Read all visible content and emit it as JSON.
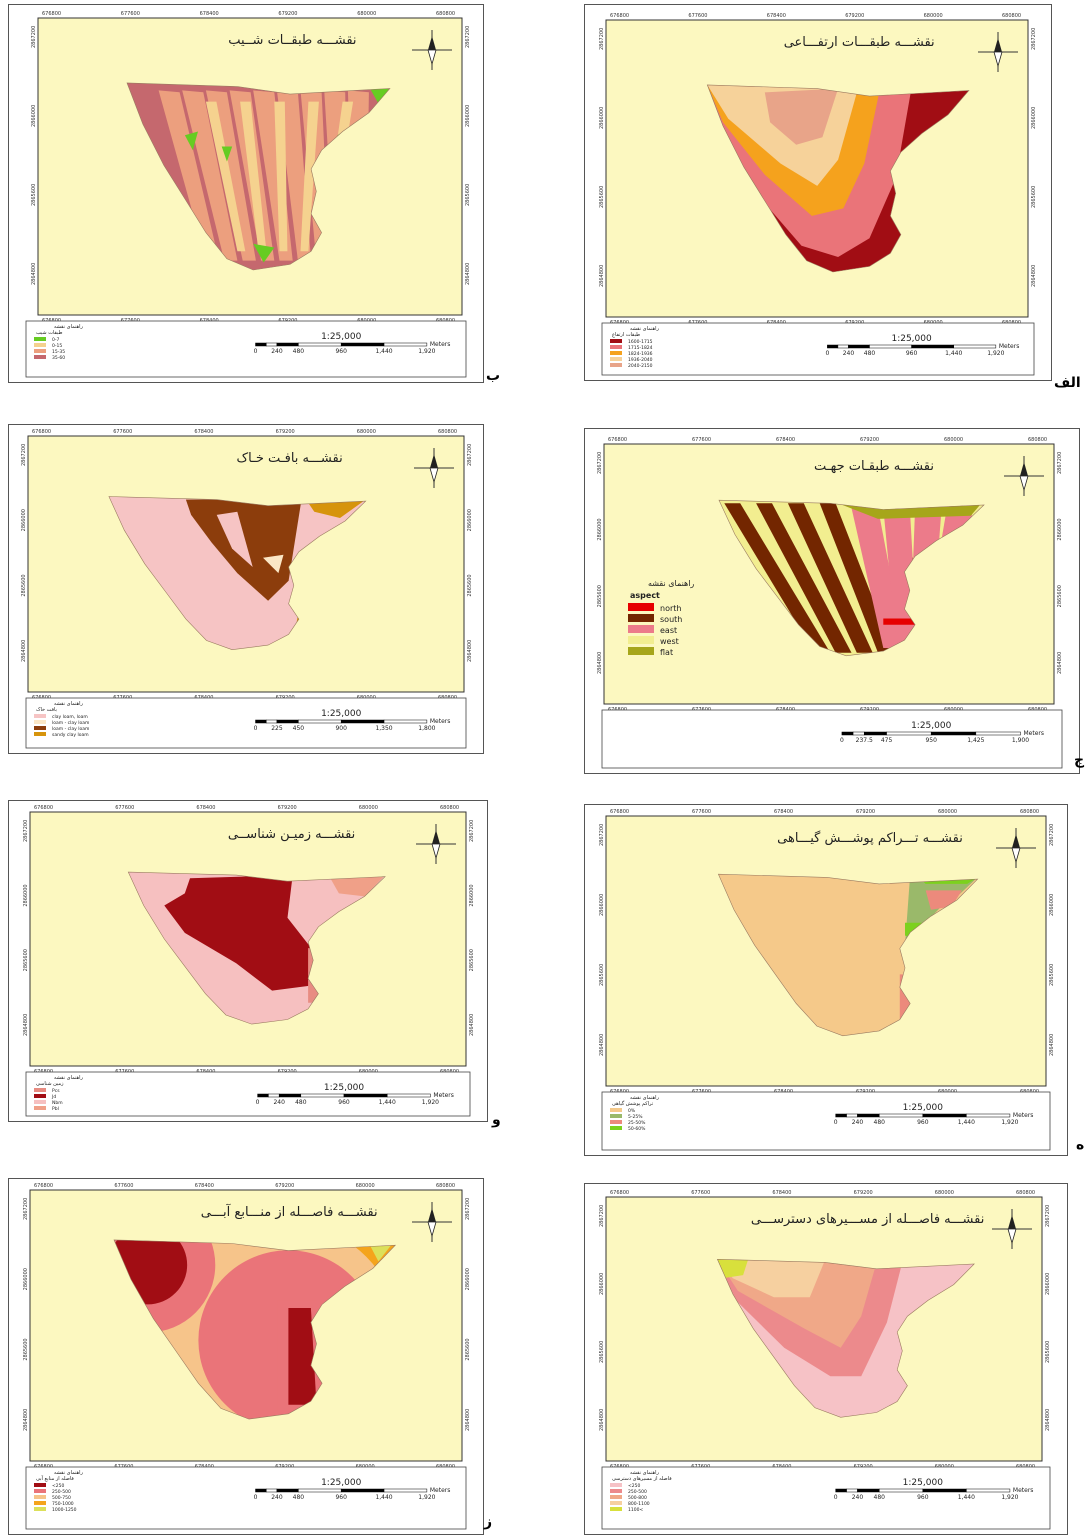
{
  "common": {
    "scale_text": "1:25,000",
    "legend_title": "راهنمای نقشه",
    "scale_unit": "Meters",
    "x_ticks": [
      "676800",
      "677600",
      "678400",
      "679200",
      "680000",
      "680800"
    ],
    "y_ticks": [
      "2867200",
      "2866000",
      "2865600",
      "2864800"
    ]
  },
  "panels": [
    {
      "id": "slope",
      "label": "ب",
      "title": "نقشـــه طبقــات شــیب",
      "scale_ticks": [
        "0",
        "240",
        "480",
        "960",
        "1,440",
        "1,920"
      ],
      "legend_subtitle": "طبقات شیب",
      "legend": [
        {
          "label": "0-7",
          "color": "#66cc22"
        },
        {
          "label": "0-15",
          "color": "#f5d28f"
        },
        {
          "label": "15-35",
          "color": "#ec9f7e"
        },
        {
          "label": "35-60",
          "color": "#c5686e"
        }
      ]
    },
    {
      "id": "elevation",
      "label": "الف",
      "title": "نقشـــه طبقـــات ارتفـــاعی",
      "scale_ticks": [
        "0",
        "240",
        "480",
        "960",
        "1,440",
        "1,920"
      ],
      "legend_subtitle": "طبقات ارتفاع",
      "legend": [
        {
          "label": "1600-1715",
          "color": "#a10d14"
        },
        {
          "label": "1715-1824",
          "color": "#ea7479"
        },
        {
          "label": "1824-1936",
          "color": "#f5a21d"
        },
        {
          "label": "1936-2040",
          "color": "#f6d29a"
        },
        {
          "label": "2040-2150",
          "color": "#e8a489"
        }
      ]
    },
    {
      "id": "soil",
      "label": "",
      "title": "نقشـــه بافـت خـاک",
      "scale_ticks": [
        "0",
        "225",
        "450",
        "900",
        "1,350",
        "1,800"
      ],
      "legend_subtitle": "بافت خاک",
      "legend": [
        {
          "label": "clay loam, loam",
          "color": "#f6c4c4"
        },
        {
          "label": "loam - clay loam",
          "color": "#fbe7c6"
        },
        {
          "label": "loam - clay loam",
          "color": "#8c3d0c"
        },
        {
          "label": "sandy clay loam",
          "color": "#d6940c"
        }
      ]
    },
    {
      "id": "aspect",
      "label": "ج",
      "title": "نقشـــه طبقـات جهـت",
      "scale_ticks": [
        "0",
        "237.5",
        "475",
        "950",
        "1,425",
        "1,900"
      ],
      "legend_subtitle": "aspect",
      "legend": [
        {
          "label": "north",
          "color": "#e60000"
        },
        {
          "label": "south",
          "color": "#732600"
        },
        {
          "label": "east",
          "color": "#ec7b8a"
        },
        {
          "label": "west",
          "color": "#f2ee90"
        },
        {
          "label": "flat",
          "color": "#a6a61a"
        }
      ]
    },
    {
      "id": "geology",
      "label": "و",
      "title": "نقشـــه زمیـن شناســی",
      "scale_ticks": [
        "0",
        "240",
        "480",
        "960",
        "1,440",
        "1,920"
      ],
      "legend_subtitle": "زمین شناسی",
      "legend": [
        {
          "label": "Pcs",
          "color": "#e88c82"
        },
        {
          "label": "Jd",
          "color": "#a10d14"
        },
        {
          "label": "Nbm",
          "color": "#f6c0c0"
        },
        {
          "label": "Pbl",
          "color": "#f0a088"
        }
      ]
    },
    {
      "id": "vegetation",
      "label": "ه",
      "title": "نقشـــه تـــراکم پوشـــش گیـــاهی",
      "scale_ticks": [
        "0",
        "240",
        "480",
        "960",
        "1,440",
        "1,920"
      ],
      "legend_subtitle": "تراکم پوشش گیاهی",
      "legend": [
        {
          "label": "0%",
          "color": "#f5c98a"
        },
        {
          "label": "5-25%",
          "color": "#9ab96a"
        },
        {
          "label": "25-50%",
          "color": "#ec8a7c"
        },
        {
          "label": "50-60%",
          "color": "#7cd11e"
        }
      ]
    },
    {
      "id": "water",
      "label": "ز",
      "title": "نقشـــه فاصـــله از منـــابع آبـــی",
      "scale_ticks": [
        "0",
        "240",
        "480",
        "960",
        "1,440",
        "1,920"
      ],
      "legend_subtitle": "فاصله از منابع آبی",
      "legend": [
        {
          "label": "<250",
          "color": "#a10d14"
        },
        {
          "label": "250-500",
          "color": "#ea7479"
        },
        {
          "label": "500-750",
          "color": "#f6c48a"
        },
        {
          "label": "750-1000",
          "color": "#f4a41c"
        },
        {
          "label": "1000-1250",
          "color": "#dce05a"
        }
      ]
    },
    {
      "id": "roads",
      "label": "",
      "title": "نقشـــه فاصـــله از مســـیرهای دسترســـی",
      "scale_ticks": [
        "0",
        "240",
        "480",
        "960",
        "1,440",
        "1,920"
      ],
      "legend_subtitle": "فاصله از مسیرهای دسترسی",
      "legend": [
        {
          "label": "<250",
          "color": "#f6c2c6"
        },
        {
          "label": "250-500",
          "color": "#ec8a8c"
        },
        {
          "label": "500-800",
          "color": "#f0a888"
        },
        {
          "label": "800-1100",
          "color": "#f6d0a0"
        },
        {
          "label": "1100<",
          "color": "#d8e03c"
        }
      ]
    }
  ]
}
